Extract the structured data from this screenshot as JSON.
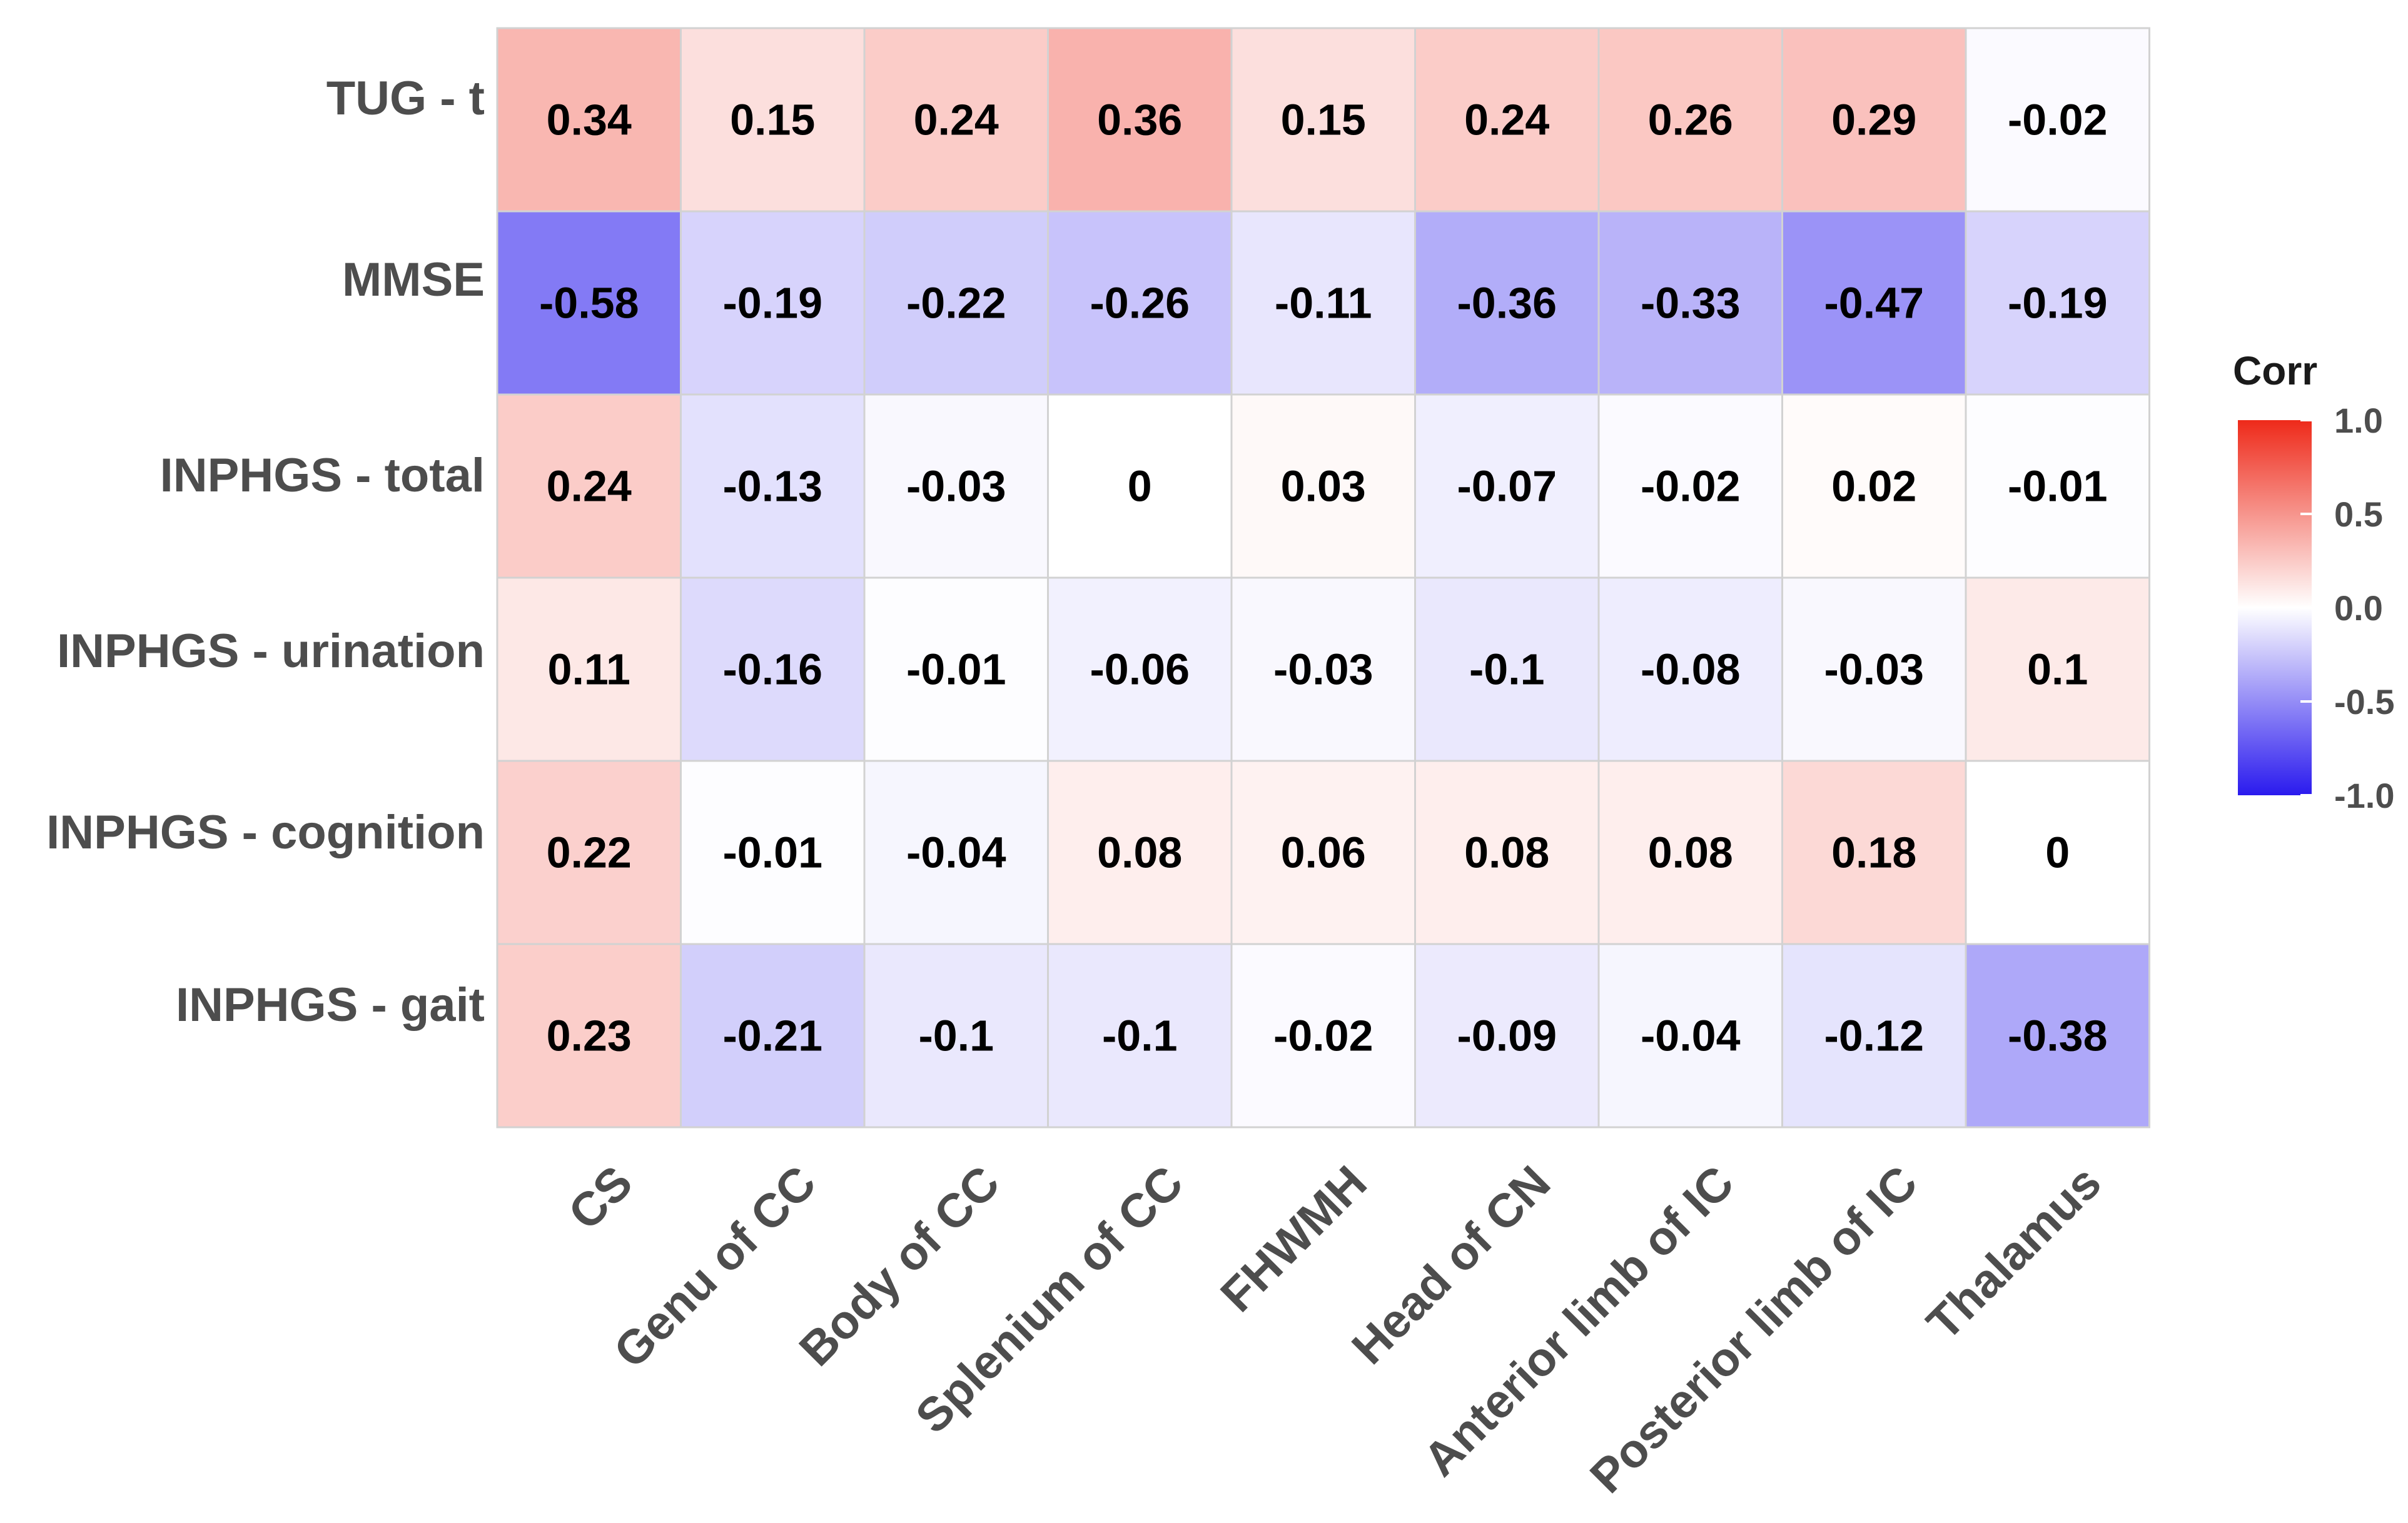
{
  "chart_data": {
    "type": "heatmap",
    "title": "",
    "xlabel": "",
    "ylabel": "",
    "rows": [
      "TUG - t",
      "MMSE",
      "INPHGS - total",
      "INPHGS - urination",
      "INPHGS - cognition",
      "INPHGS - gait"
    ],
    "columns": [
      "CS",
      "Genu of CC",
      "Body of CC",
      "Splenium of CC",
      "FHWMH",
      "Head of CN",
      "Anterior limb of IC",
      "Posterior limb of IC",
      "Thalamus"
    ],
    "values": [
      [
        0.34,
        0.15,
        0.24,
        0.36,
        0.15,
        0.24,
        0.26,
        0.29,
        -0.02
      ],
      [
        -0.58,
        -0.19,
        -0.22,
        -0.26,
        -0.11,
        -0.36,
        -0.33,
        -0.47,
        -0.19
      ],
      [
        0.24,
        -0.13,
        -0.03,
        0,
        0.03,
        -0.07,
        -0.02,
        0.02,
        -0.01
      ],
      [
        0.11,
        -0.16,
        -0.01,
        -0.06,
        -0.03,
        -0.1,
        -0.08,
        -0.03,
        0.1
      ],
      [
        0.22,
        -0.01,
        -0.04,
        0.08,
        0.06,
        0.08,
        0.08,
        0.18,
        0
      ],
      [
        0.23,
        -0.21,
        -0.1,
        -0.1,
        -0.02,
        -0.09,
        -0.04,
        -0.12,
        -0.38
      ]
    ],
    "value_labels": [
      [
        "0.34",
        "0.15",
        "0.24",
        "0.36",
        "0.15",
        "0.24",
        "0.26",
        "0.29",
        "-0.02"
      ],
      [
        "-0.58",
        "-0.19",
        "-0.22",
        "-0.26",
        "-0.11",
        "-0.36",
        "-0.33",
        "-0.47",
        "-0.19"
      ],
      [
        "0.24",
        "-0.13",
        "-0.03",
        "0",
        "0.03",
        "-0.07",
        "-0.02",
        "0.02",
        "-0.01"
      ],
      [
        "0.11",
        "-0.16",
        "-0.01",
        "-0.06",
        "-0.03",
        "-0.1",
        "-0.08",
        "-0.03",
        "0.1"
      ],
      [
        "0.22",
        "-0.01",
        "-0.04",
        "0.08",
        "0.06",
        "0.08",
        "0.08",
        "0.18",
        "0"
      ],
      [
        "0.23",
        "-0.21",
        "-0.1",
        "-0.1",
        "-0.02",
        "-0.09",
        "-0.04",
        "-0.12",
        "-0.38"
      ]
    ],
    "legend": {
      "title": "Corr",
      "position": "right",
      "range": [
        -1.0,
        1.0
      ],
      "ticks": [
        1.0,
        0.5,
        0.0,
        -0.5,
        -1.0
      ],
      "tick_labels": [
        "1.0",
        "0.5",
        "0.0",
        "-0.5",
        "-1.0"
      ]
    },
    "colors": {
      "high": "#ee2a1a",
      "mid": "#ffffff",
      "low": "#2a1aee",
      "grid": "#d2d2d2",
      "label": "#4d4d4d",
      "cell_text": "#000000"
    }
  }
}
